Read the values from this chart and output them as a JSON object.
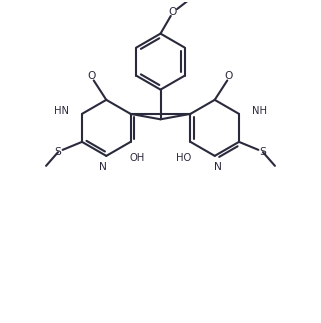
{
  "bg_color": "#ffffff",
  "line_color": "#2a2a3d",
  "line_width": 1.5,
  "figsize": [
    3.21,
    3.23
  ],
  "dpi": 100,
  "label_fontsize": 7.2,
  "xlim": [
    -2.8,
    2.8
  ],
  "ylim": [
    -2.8,
    2.8
  ]
}
